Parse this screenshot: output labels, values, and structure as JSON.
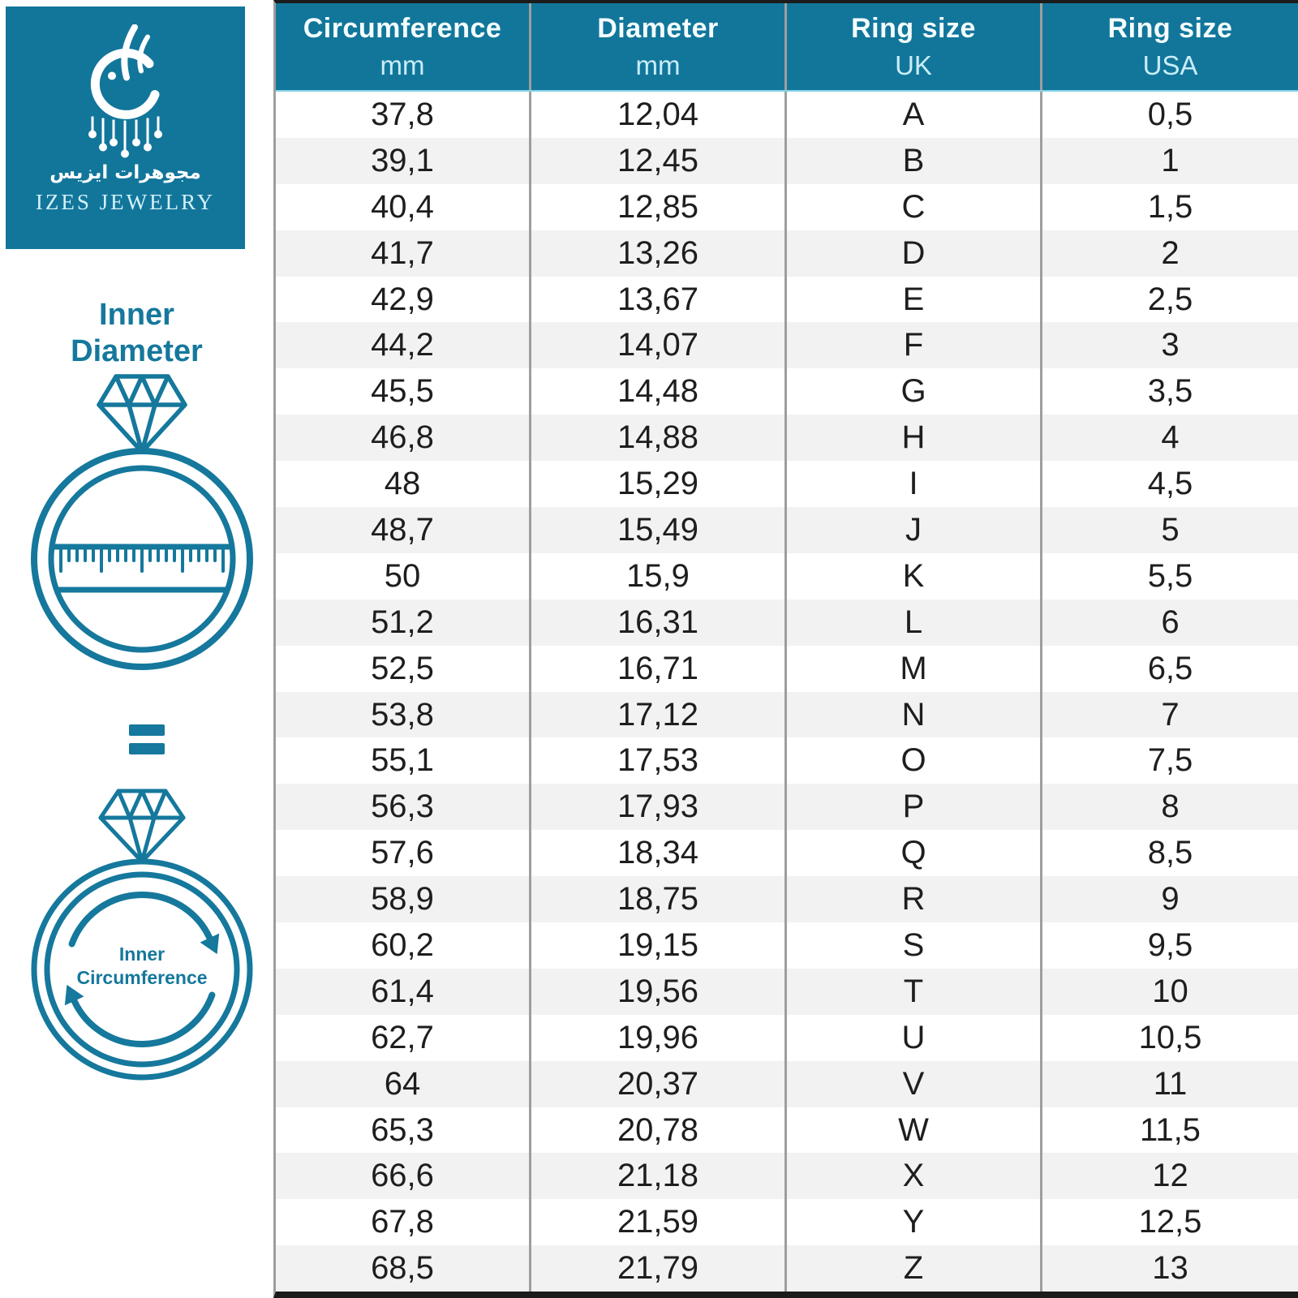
{
  "brand": {
    "arabic_name": "مجوهرات ايزيس",
    "english_name": "IZES JEWELRY"
  },
  "sidebar": {
    "inner_diameter_line1": "Inner",
    "inner_diameter_line2": "Diameter",
    "equals_symbol": "=",
    "inner_circumference_line1": "Inner",
    "inner_circumference_line2": "Circumference"
  },
  "colors": {
    "teal": "#12769B",
    "icon_teal": "#15789C",
    "header_title_text": "#F4FDFF",
    "header_sub_text": "#C9EDF7",
    "row_alt": "#F2F2F2",
    "divider_gray": "#9E9E9E",
    "border_dark": "#1B1B1B",
    "cell_text": "#1E1E1E"
  },
  "table": {
    "headers": [
      {
        "title": "Circumference",
        "sub": "mm"
      },
      {
        "title": "Diameter",
        "sub": "mm"
      },
      {
        "title": "Ring size",
        "sub": "UK"
      },
      {
        "title": "Ring size",
        "sub": "USA"
      }
    ],
    "rows": [
      [
        "37,8",
        "12,04",
        "A",
        "0,5"
      ],
      [
        "39,1",
        "12,45",
        "B",
        "1"
      ],
      [
        "40,4",
        "12,85",
        "C",
        "1,5"
      ],
      [
        "41,7",
        "13,26",
        "D",
        "2"
      ],
      [
        "42,9",
        "13,67",
        "E",
        "2,5"
      ],
      [
        "44,2",
        "14,07",
        "F",
        "3"
      ],
      [
        "45,5",
        "14,48",
        "G",
        "3,5"
      ],
      [
        "46,8",
        "14,88",
        "H",
        "4"
      ],
      [
        "48",
        "15,29",
        "I",
        "4,5"
      ],
      [
        "48,7",
        "15,49",
        "J",
        "5"
      ],
      [
        "50",
        "15,9",
        "K",
        "5,5"
      ],
      [
        "51,2",
        "16,31",
        "L",
        "6"
      ],
      [
        "52,5",
        "16,71",
        "M",
        "6,5"
      ],
      [
        "53,8",
        "17,12",
        "N",
        "7"
      ],
      [
        "55,1",
        "17,53",
        "O",
        "7,5"
      ],
      [
        "56,3",
        "17,93",
        "P",
        "8"
      ],
      [
        "57,6",
        "18,34",
        "Q",
        "8,5"
      ],
      [
        "58,9",
        "18,75",
        "R",
        "9"
      ],
      [
        "60,2",
        "19,15",
        "S",
        "9,5"
      ],
      [
        "61,4",
        "19,56",
        "T",
        "10"
      ],
      [
        "62,7",
        "19,96",
        "U",
        "10,5"
      ],
      [
        "64",
        "20,37",
        "V",
        "11"
      ],
      [
        "65,3",
        "20,78",
        "W",
        "11,5"
      ],
      [
        "66,6",
        "21,18",
        "X",
        "12"
      ],
      [
        "67,8",
        "21,59",
        "Y",
        "12,5"
      ],
      [
        "68,5",
        "21,79",
        "Z",
        "13"
      ]
    ]
  },
  "chart_data": {
    "type": "table",
    "title": "Ring size conversion chart (IZES Jewelry)",
    "columns": [
      "Circumference mm",
      "Diameter mm",
      "Ring size UK",
      "Ring size USA"
    ],
    "circumference_mm": [
      37.8,
      39.1,
      40.4,
      41.7,
      42.9,
      44.2,
      45.5,
      46.8,
      48,
      48.7,
      50,
      51.2,
      52.5,
      53.8,
      55.1,
      56.3,
      57.6,
      58.9,
      60.2,
      61.4,
      62.7,
      64,
      65.3,
      66.6,
      67.8,
      68.5
    ],
    "diameter_mm": [
      12.04,
      12.45,
      12.85,
      13.26,
      13.67,
      14.07,
      14.48,
      14.88,
      15.29,
      15.49,
      15.9,
      16.31,
      16.71,
      17.12,
      17.53,
      17.93,
      18.34,
      18.75,
      19.15,
      19.56,
      19.96,
      20.37,
      20.78,
      21.18,
      21.59,
      21.79
    ],
    "ring_size_uk": [
      "A",
      "B",
      "C",
      "D",
      "E",
      "F",
      "G",
      "H",
      "I",
      "J",
      "K",
      "L",
      "M",
      "N",
      "O",
      "P",
      "Q",
      "R",
      "S",
      "T",
      "U",
      "V",
      "W",
      "X",
      "Y",
      "Z"
    ],
    "ring_size_usa": [
      0.5,
      1,
      1.5,
      2,
      2.5,
      3,
      3.5,
      4,
      4.5,
      5,
      5.5,
      6,
      6.5,
      7,
      7.5,
      8,
      8.5,
      9,
      9.5,
      10,
      10.5,
      11,
      11.5,
      12,
      12.5,
      13
    ]
  }
}
